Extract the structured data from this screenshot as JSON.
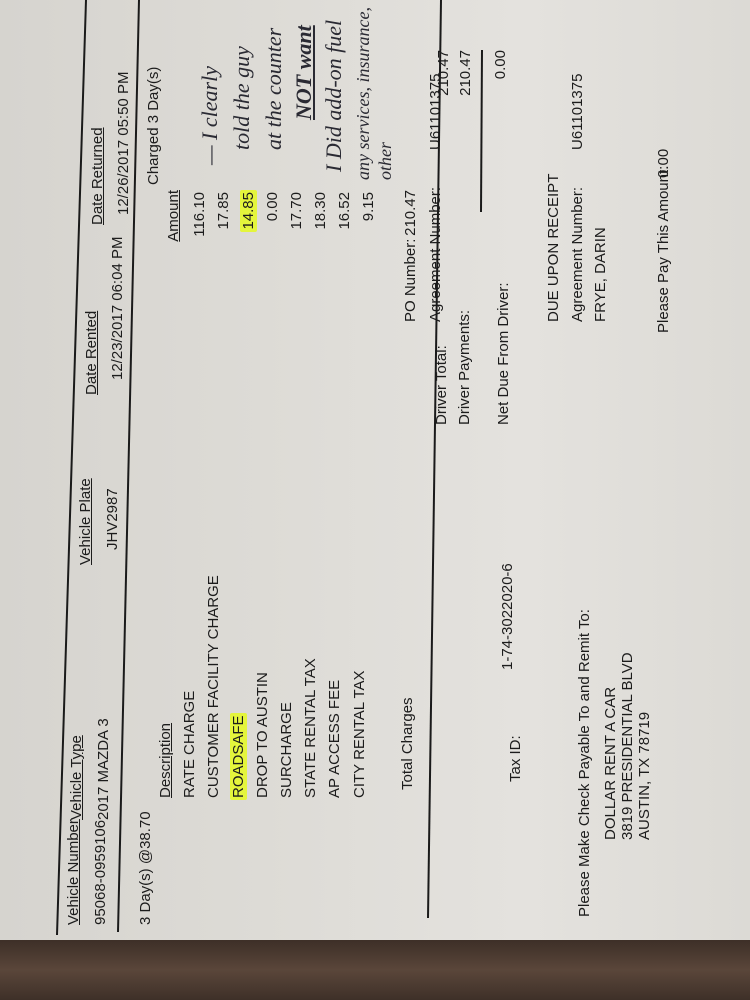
{
  "header": {
    "po_number_label": "PO Number:",
    "agreement_number_label": "Agreement Number:",
    "agreement_number": "U61101375"
  },
  "vehicle": {
    "headers": {
      "vehicle_number": "Vehicle Number",
      "vehicle_type": "Vehicle Type",
      "vehicle_plate": "Vehicle Plate",
      "date_rented": "Date Rented",
      "date_returned": "Date Returned"
    },
    "values": {
      "vehicle_number": "95068-0959106",
      "vehicle_type": "2017 MAZDA 3",
      "vehicle_plate": "JHV2987",
      "date_rented": "12/23/2017 06:04 PM",
      "date_returned": "12/26/2017 05:50 PM"
    }
  },
  "rate": {
    "days_rate": "3 Day(s) @38.70",
    "charged": "Charged 3 Day(s)"
  },
  "charges": {
    "description_header": "Description",
    "amount_header": "Amount",
    "items": [
      {
        "description": "RATE CHARGE",
        "amount": "116.10"
      },
      {
        "description": "CUSTOMER FACILITY CHARGE",
        "amount": "17.85"
      },
      {
        "description": "ROADSAFE",
        "amount": "14.85",
        "highlighted": true
      },
      {
        "description": "DROP TO AUSTIN",
        "amount": "0.00"
      },
      {
        "description": "SURCHARGE",
        "amount": "17.70"
      },
      {
        "description": "STATE RENTAL TAX",
        "amount": "18.30"
      },
      {
        "description": "AP ACCESS FEE",
        "amount": "16.52"
      },
      {
        "description": "CITY RENTAL TAX",
        "amount": "9.15"
      }
    ],
    "total_label": "Total Charges",
    "total": "210.47",
    "highlight_color": "#e4f53c"
  },
  "totals": {
    "driver_total_label": "Driver Total:",
    "driver_total": "210.47",
    "driver_payments_label": "Driver Payments:",
    "driver_payments": "210.47",
    "net_due_label": "Net Due From Driver:",
    "net_due": "0.00"
  },
  "tax": {
    "label": "Tax ID:",
    "value": "1-74-3022020-6"
  },
  "remit": {
    "instruction": "Please Make Check Payable To and Remit To:",
    "name": "DOLLAR RENT A CAR",
    "street": "3819 PRESIDENTIAL BLVD",
    "city": "AUSTIN, TX 78719"
  },
  "footer": {
    "due": "DUE UPON RECEIPT",
    "agreement_number_label": "Agreement Number:",
    "agreement_number": "U61101375",
    "customer": "FRYE, DARIN",
    "pay_label": "Please Pay This Amount:",
    "pay_amount": "0.00"
  },
  "handwritten_note": [
    "— I clearly",
    "told the guy",
    "at the counter",
    "NOT want",
    "I Did add-on fuel",
    "any services, insurance, other"
  ]
}
